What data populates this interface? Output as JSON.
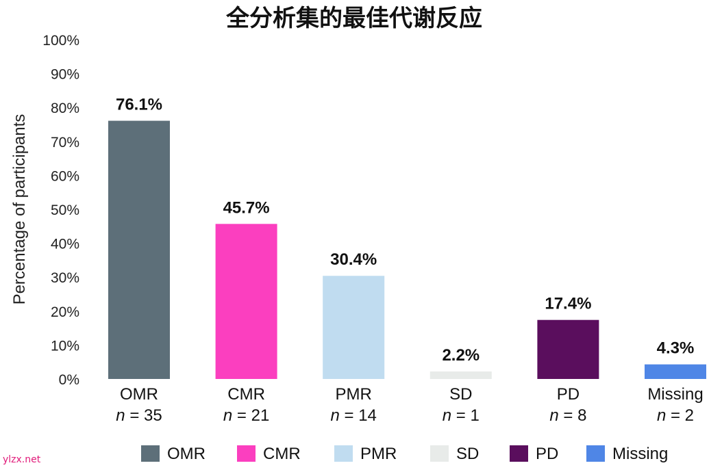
{
  "chart_data": {
    "type": "bar",
    "title": "全分析集的最佳代谢反应",
    "ylabel": "Percentage of participants",
    "xlabel": "",
    "ylim": [
      0,
      100
    ],
    "yticks": [
      0,
      10,
      20,
      30,
      40,
      50,
      60,
      70,
      80,
      90,
      100
    ],
    "ytick_suffix": "%",
    "grid": false,
    "legend_position": "bottom",
    "categories": [
      "OMR",
      "CMR",
      "PMR",
      "SD",
      "PD",
      "Missing"
    ],
    "sublabels": [
      "35",
      "21",
      "14",
      "1",
      "8",
      "2"
    ],
    "sublabel_prefix": "n = ",
    "values": [
      76.1,
      45.7,
      30.4,
      2.2,
      17.4,
      4.3
    ],
    "data_labels": [
      "76.1%",
      "45.7%",
      "30.4%",
      "2.2%",
      "17.4%",
      "4.3%"
    ],
    "colors": [
      "#5d6f79",
      "#fb3fbf",
      "#c0dcf0",
      "#e8ebe9",
      "#5a0e5d",
      "#4f86e6"
    ],
    "legend": [
      "OMR",
      "CMR",
      "PMR",
      "SD",
      "PD",
      "Missing"
    ]
  },
  "watermark": "ylzx.net"
}
